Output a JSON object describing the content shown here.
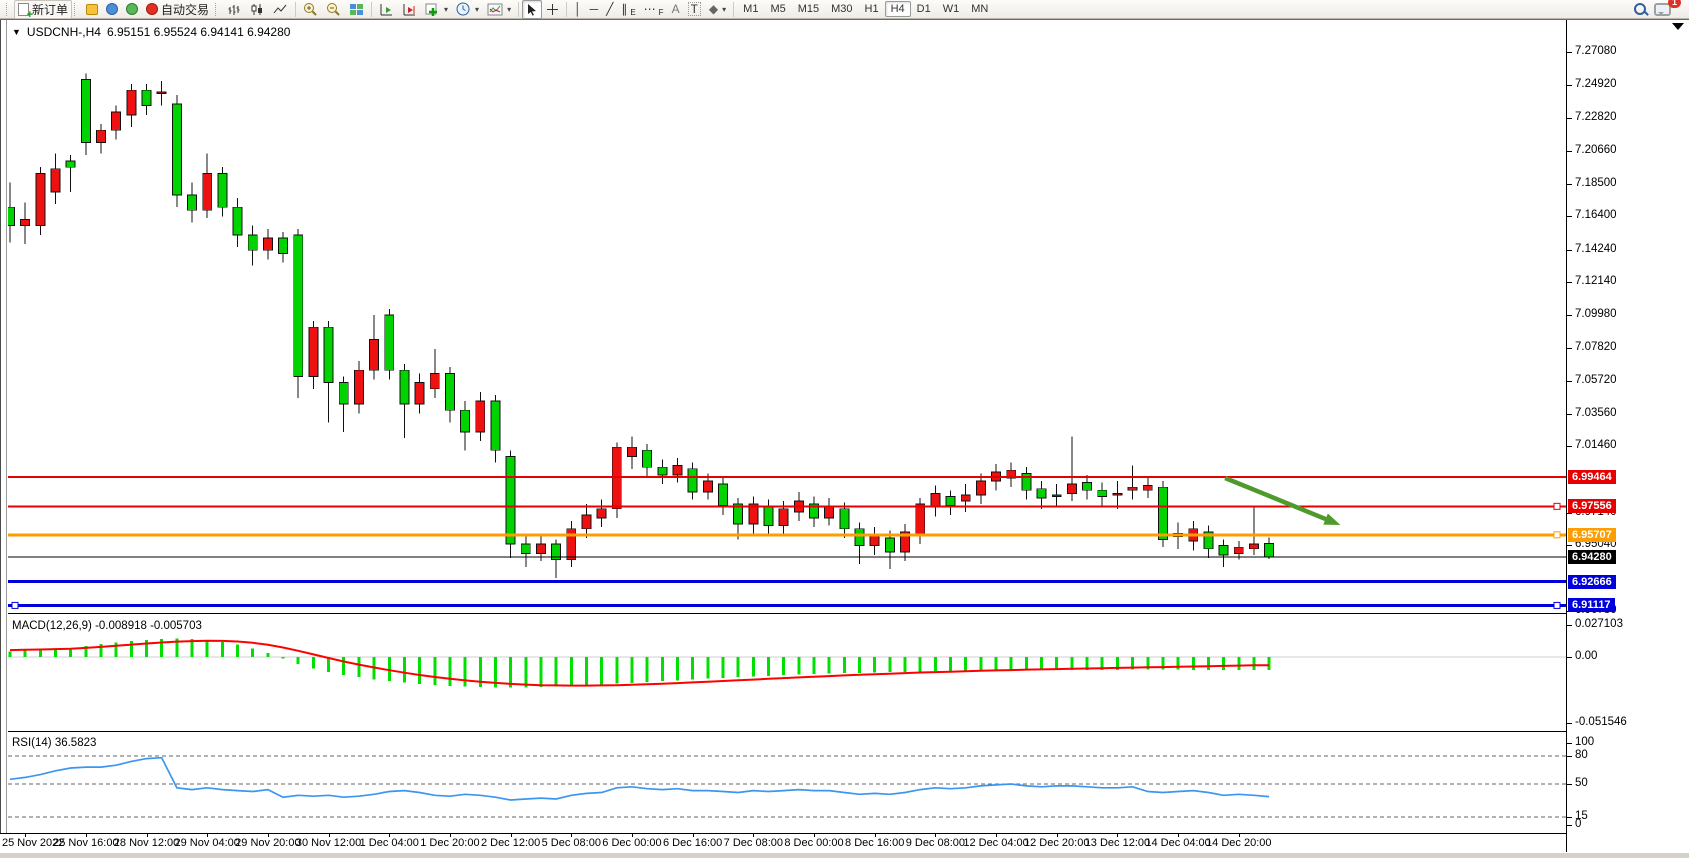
{
  "toolbar": {
    "new_order_label": "新订单",
    "autotrading_label": "自动交易",
    "periods": [
      "M1",
      "M5",
      "M15",
      "M30",
      "H1",
      "H4",
      "D1",
      "W1",
      "MN"
    ],
    "active_period": "H4",
    "chat_badge": "1",
    "glyphs": {
      "caret": "▾",
      "vline": "│",
      "hline": "─",
      "trend": "╱",
      "channel": "∥",
      "channel_sub": "E",
      "fibo_dots": "⋯",
      "fibo_sub": "F",
      "text": "A",
      "label": "T",
      "arrows": "◆",
      "cursor": "➤",
      "cross": "+"
    },
    "icons": [
      "new-order",
      "metaeditor",
      "mql5-community",
      "signals",
      "autotrading",
      "bar-chart",
      "candlestick-chart",
      "line-chart",
      "zoom-in",
      "zoom-out",
      "tile-windows",
      "auto-scroll",
      "chart-shift",
      "new-chart",
      "profiles",
      "indicators",
      "cursor",
      "crosshair",
      "vertical-line",
      "horizontal-line",
      "trendline",
      "equidistant-channel",
      "fibonacci",
      "text",
      "text-label",
      "arrows",
      "search",
      "chat"
    ]
  },
  "window": {
    "symbol_period": "USDCNH-,H4",
    "ohlc_text": "6.95151 6.95524 6.94141 6.94280",
    "ohlc": {
      "open": "6.95151",
      "high": "6.95524",
      "low": "6.94141",
      "close": "6.94280"
    }
  },
  "chart_data": {
    "type": "candlestick",
    "symbol": "USDCNH-",
    "timeframe": "H4",
    "up_color": "#ee1111",
    "down_color": "#00d300",
    "candles": [
      [
        7.17,
        7.186,
        7.147,
        7.158
      ],
      [
        7.158,
        7.173,
        7.146,
        7.162
      ],
      [
        7.158,
        7.196,
        7.152,
        7.192
      ],
      [
        7.18,
        7.205,
        7.172,
        7.195
      ],
      [
        7.2,
        7.204,
        7.18,
        7.196
      ],
      [
        7.253,
        7.257,
        7.204,
        7.212
      ],
      [
        7.212,
        7.224,
        7.205,
        7.22
      ],
      [
        7.22,
        7.236,
        7.214,
        7.232
      ],
      [
        7.23,
        7.25,
        7.222,
        7.246
      ],
      [
        7.246,
        7.25,
        7.23,
        7.236
      ],
      [
        7.244,
        7.252,
        7.236,
        7.245
      ],
      [
        7.237,
        7.243,
        7.17,
        7.178
      ],
      [
        7.178,
        7.186,
        7.16,
        7.168
      ],
      [
        7.168,
        7.205,
        7.163,
        7.192
      ],
      [
        7.192,
        7.196,
        7.164,
        7.17
      ],
      [
        7.17,
        7.176,
        7.144,
        7.152
      ],
      [
        7.152,
        7.158,
        7.132,
        7.142
      ],
      [
        7.142,
        7.156,
        7.136,
        7.15
      ],
      [
        7.15,
        7.154,
        7.134,
        7.14
      ],
      [
        7.152,
        7.156,
        7.046,
        7.06
      ],
      [
        7.06,
        7.096,
        7.052,
        7.092
      ],
      [
        7.092,
        7.096,
        7.03,
        7.056
      ],
      [
        7.056,
        7.06,
        7.024,
        7.042
      ],
      [
        7.042,
        7.07,
        7.036,
        7.064
      ],
      [
        7.064,
        7.1,
        7.058,
        7.084
      ],
      [
        7.1,
        7.104,
        7.058,
        7.064
      ],
      [
        7.064,
        7.068,
        7.02,
        7.042
      ],
      [
        7.042,
        7.062,
        7.036,
        7.056
      ],
      [
        7.052,
        7.078,
        7.046,
        7.062
      ],
      [
        7.062,
        7.066,
        7.03,
        7.038
      ],
      [
        7.038,
        7.044,
        7.012,
        7.024
      ],
      [
        7.024,
        7.05,
        7.018,
        7.044
      ],
      [
        7.044,
        7.048,
        7.004,
        7.012
      ],
      [
        7.008,
        7.012,
        6.942,
        6.951
      ],
      [
        6.951,
        6.956,
        6.936,
        6.945
      ],
      [
        6.945,
        6.956,
        6.94,
        6.951
      ],
      [
        6.951,
        6.954,
        6.929,
        6.941
      ],
      [
        6.941,
        6.966,
        6.936,
        6.961
      ],
      [
        6.961,
        6.977,
        6.955,
        6.97
      ],
      [
        6.968,
        6.98,
        6.962,
        6.974
      ],
      [
        6.974,
        7.017,
        6.968,
        7.014
      ],
      [
        7.008,
        7.021,
        7.0,
        7.014
      ],
      [
        7.012,
        7.016,
        6.995,
        7.001
      ],
      [
        7.001,
        7.006,
        6.99,
        6.996
      ],
      [
        6.996,
        7.007,
        6.991,
        7.002
      ],
      [
        7.0,
        7.004,
        6.98,
        6.985
      ],
      [
        6.985,
        6.997,
        6.98,
        6.992
      ],
      [
        6.99,
        6.994,
        6.97,
        6.976
      ],
      [
        6.977,
        6.981,
        6.954,
        6.964
      ],
      [
        6.964,
        6.982,
        6.958,
        6.977
      ],
      [
        6.975,
        6.98,
        6.957,
        6.963
      ],
      [
        6.963,
        6.979,
        6.958,
        6.974
      ],
      [
        6.972,
        6.985,
        6.966,
        6.979
      ],
      [
        6.977,
        6.982,
        6.962,
        6.968
      ],
      [
        6.968,
        6.981,
        6.963,
        6.975
      ],
      [
        6.974,
        6.978,
        6.955,
        6.961
      ],
      [
        6.961,
        6.965,
        6.938,
        6.95
      ],
      [
        6.95,
        6.962,
        6.944,
        6.957
      ],
      [
        6.955,
        6.96,
        6.935,
        6.946
      ],
      [
        6.946,
        6.964,
        6.94,
        6.959
      ],
      [
        6.957,
        6.981,
        6.951,
        6.977
      ],
      [
        6.975,
        6.989,
        6.969,
        6.984
      ],
      [
        6.982,
        6.986,
        6.97,
        6.976
      ],
      [
        6.979,
        6.99,
        6.972,
        6.983
      ],
      [
        6.983,
        6.997,
        6.977,
        6.992
      ],
      [
        6.992,
        7.003,
        6.986,
        6.998
      ],
      [
        6.994,
        7.004,
        6.988,
        6.999
      ],
      [
        6.997,
        7.001,
        6.98,
        6.986
      ],
      [
        6.987,
        6.992,
        6.974,
        6.981
      ],
      [
        6.982,
        6.99,
        6.975,
        6.983
      ],
      [
        6.984,
        7.021,
        6.979,
        6.99
      ],
      [
        6.991,
        6.996,
        6.98,
        6.986
      ],
      [
        6.986,
        6.991,
        6.976,
        6.982
      ],
      [
        6.983,
        6.992,
        6.974,
        6.984
      ],
      [
        6.986,
        7.002,
        6.98,
        6.988
      ],
      [
        6.986,
        6.994,
        6.981,
        6.989
      ],
      [
        6.988,
        6.992,
        6.949,
        6.954
      ],
      [
        6.956,
        6.965,
        6.948,
        6.958
      ],
      [
        6.953,
        6.966,
        6.947,
        6.961
      ],
      [
        6.959,
        6.963,
        6.942,
        6.948
      ],
      [
        6.95,
        6.954,
        6.936,
        6.944
      ],
      [
        6.945,
        6.953,
        6.941,
        6.949
      ],
      [
        6.948,
        6.975,
        6.944,
        6.951
      ],
      [
        6.95151,
        6.95524,
        6.94141,
        6.9428
      ]
    ],
    "price_axis_ticks": [
      "7.27080",
      "7.24920",
      "7.22820",
      "7.20660",
      "7.18500",
      "7.16400",
      "7.14240",
      "7.12140",
      "7.09980",
      "7.07820",
      "7.05720",
      "7.03560",
      "7.01460",
      "6.97140",
      "6.95040",
      "6.90780"
    ],
    "price_lines": [
      {
        "price": 6.99464,
        "label": "6.99464",
        "color": "#e60000",
        "width": 2,
        "anchors": []
      },
      {
        "price": 6.97556,
        "label": "6.97556",
        "color": "#e60000",
        "width": 2,
        "anchors": [
          "right"
        ]
      },
      {
        "price": 6.95707,
        "label": "6.95707",
        "color": "#ff9d00",
        "width": 3,
        "anchors": [
          "right"
        ]
      },
      {
        "price": 6.92666,
        "label": "6.92666",
        "color": "#0000dd",
        "width": 3,
        "anchors": []
      },
      {
        "price": 6.91117,
        "label": "6.91117",
        "color": "#0000dd",
        "width": 3,
        "anchors": [
          "left",
          "right"
        ]
      }
    ],
    "bid_line": {
      "price": 6.9428,
      "label": "6.94280",
      "color": "#000000"
    },
    "arrow": {
      "c1": 80.1,
      "p1": 6.994,
      "c2": 87.7,
      "p2": 6.9634,
      "color": "#4e9a2c"
    },
    "indicators": [
      {
        "name": "MACD",
        "label": "MACD(12,26,9) -0.008918 -0.005703",
        "scale_labels": [
          "0.027103",
          "0.00",
          "-0.051546"
        ],
        "hist": [
          0.004,
          0.0045,
          0.005,
          0.0055,
          0.006,
          0.0075,
          0.009,
          0.01,
          0.011,
          0.0118,
          0.0124,
          0.0128,
          0.0126,
          0.0118,
          0.0105,
          0.0088,
          0.006,
          0.0028,
          -0.0012,
          -0.0048,
          -0.008,
          -0.0105,
          -0.0125,
          -0.014,
          -0.0155,
          -0.0168,
          -0.0178,
          -0.0188,
          -0.0196,
          -0.0202,
          -0.0207,
          -0.021,
          -0.0212,
          -0.0213,
          -0.0212,
          -0.021,
          -0.0207,
          -0.0203,
          -0.0198,
          -0.0192,
          -0.0186,
          -0.018,
          -0.0174,
          -0.0168,
          -0.0162,
          -0.0156,
          -0.015,
          -0.0145,
          -0.014,
          -0.0135,
          -0.0131,
          -0.0127,
          -0.0123,
          -0.0119,
          -0.0116,
          -0.0113,
          -0.011,
          -0.0107,
          -0.0105,
          -0.0103,
          -0.0101,
          -0.0099,
          -0.0097,
          -0.0096,
          -0.0095,
          -0.0094,
          -0.0093,
          -0.0092,
          -0.0091,
          -0.009,
          -0.009,
          -0.0089,
          -0.0089,
          -0.0089,
          -0.0088,
          -0.0088,
          -0.0088,
          -0.0088,
          -0.0089,
          -0.0089,
          -0.0089,
          -0.0089,
          -0.0089,
          -0.0089
        ],
        "signal": [
          0.0048,
          0.005,
          0.0052,
          0.0055,
          0.0058,
          0.0063,
          0.007,
          0.0078,
          0.0086,
          0.0094,
          0.0101,
          0.0107,
          0.0111,
          0.0113,
          0.0112,
          0.0108,
          0.0099,
          0.0085,
          0.0066,
          0.0043,
          0.0018,
          -0.0007,
          -0.0031,
          -0.0053,
          -0.0073,
          -0.0092,
          -0.0109,
          -0.0125,
          -0.0139,
          -0.0152,
          -0.0163,
          -0.0172,
          -0.018,
          -0.0187,
          -0.0192,
          -0.0196,
          -0.0198,
          -0.0199,
          -0.0199,
          -0.0198,
          -0.0196,
          -0.0193,
          -0.019,
          -0.0186,
          -0.0182,
          -0.0177,
          -0.0172,
          -0.0167,
          -0.0162,
          -0.0157,
          -0.0152,
          -0.0147,
          -0.0142,
          -0.0137,
          -0.0133,
          -0.0128,
          -0.0124,
          -0.012,
          -0.0116,
          -0.0112,
          -0.0108,
          -0.0105,
          -0.0102,
          -0.0099,
          -0.0096,
          -0.0093,
          -0.0091,
          -0.0088,
          -0.0086,
          -0.0084,
          -0.0082,
          -0.008,
          -0.0078,
          -0.0076,
          -0.0074,
          -0.0072,
          -0.007,
          -0.0068,
          -0.0066,
          -0.0064,
          -0.0062,
          -0.006,
          -0.0058,
          -0.0057
        ],
        "hist_color": "#00e000",
        "signal_color": "#ff0000"
      },
      {
        "name": "RSI",
        "label": "RSI(14) 36.5823",
        "scale_labels": [
          "100",
          "80",
          "50",
          "15",
          "0"
        ],
        "levels": [
          80,
          50,
          15
        ],
        "values": [
          55,
          57,
          60,
          64,
          67,
          68,
          68,
          70,
          74,
          77,
          78,
          46,
          44,
          46,
          44,
          43,
          42,
          44,
          36,
          38,
          37,
          38,
          36,
          37,
          39,
          42,
          43,
          41,
          38,
          37,
          39,
          38,
          36,
          33,
          34,
          35,
          34,
          38,
          40,
          41,
          46,
          47,
          45,
          44,
          45,
          43,
          43,
          42,
          41,
          43,
          42,
          43,
          44,
          43,
          43,
          41,
          39,
          40,
          39,
          41,
          44,
          46,
          45,
          46,
          48,
          49,
          50,
          48,
          47,
          48,
          48,
          47,
          46,
          46,
          47,
          42,
          41,
          42,
          43,
          41,
          38,
          39,
          38,
          36.58
        ],
        "line_color": "#3c96f0"
      }
    ],
    "time_axis": [
      {
        "t": "25 Nov 2022",
        "i": 1
      },
      {
        "t": "25 Nov 16:00",
        "i": 5
      },
      {
        "t": "28 Nov 12:00",
        "i": 9
      },
      {
        "t": "29 Nov 04:00",
        "i": 13
      },
      {
        "t": "29 Nov 20:00",
        "i": 17
      },
      {
        "t": "30 Nov 12:00",
        "i": 21
      },
      {
        "t": "1 Dec 04:00",
        "i": 25
      },
      {
        "t": "1 Dec 20:00",
        "i": 29
      },
      {
        "t": "2 Dec 12:00",
        "i": 33
      },
      {
        "t": "5 Dec 08:00",
        "i": 37
      },
      {
        "t": "6 Dec 00:00",
        "i": 41
      },
      {
        "t": "6 Dec 16:00",
        "i": 45
      },
      {
        "t": "7 Dec 08:00",
        "i": 49
      },
      {
        "t": "8 Dec 00:00",
        "i": 53
      },
      {
        "t": "8 Dec 16:00",
        "i": 57
      },
      {
        "t": "9 Dec 08:00",
        "i": 61
      },
      {
        "t": "12 Dec 04:00",
        "i": 65
      },
      {
        "t": "12 Dec 20:00",
        "i": 69
      },
      {
        "t": "13 Dec 12:00",
        "i": 73
      },
      {
        "t": "14 Dec 04:00",
        "i": 77
      },
      {
        "t": "14 Dec 20:00",
        "i": 81
      }
    ]
  }
}
